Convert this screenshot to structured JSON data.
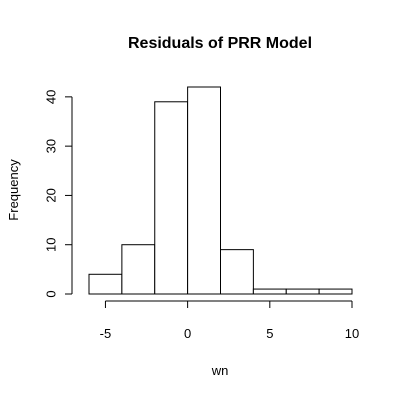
{
  "chart_data": {
    "type": "bar",
    "title": "Residuals of PRR Model",
    "xlabel": "wn",
    "ylabel": "Frequency",
    "bin_edges": [
      -6,
      -4,
      -2,
      0,
      2,
      4,
      6,
      8,
      10
    ],
    "values": [
      4,
      10,
      39,
      42,
      9,
      1,
      1,
      1
    ],
    "xlim": [
      -6,
      10
    ],
    "ylim": [
      0,
      42
    ],
    "x_ticks": [
      -5,
      0,
      5,
      10
    ],
    "y_ticks": [
      0,
      10,
      20,
      30,
      40
    ],
    "grid": false,
    "bar_fill": "#ffffff",
    "bar_stroke": "#000000"
  }
}
